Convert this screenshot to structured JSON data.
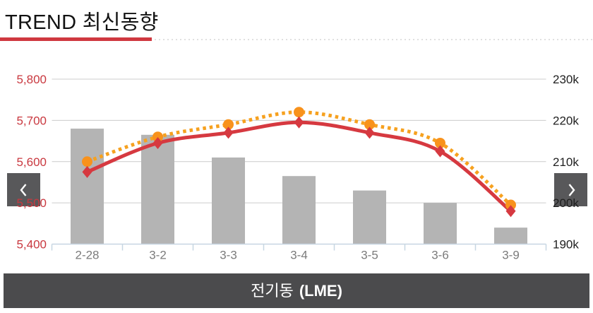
{
  "header": {
    "title": "TREND 최신동향"
  },
  "footer": {
    "label": "전기동",
    "suffix": "(LME)"
  },
  "colors": {
    "accent_red": "#d63940",
    "orange": "#f6a11f",
    "orange_marker": "#f8921c",
    "bar_gray": "#b4b4b4",
    "grid_line": "#cccccc",
    "axis_line": "#c7d6e2",
    "x_label": "#7b7b7b",
    "left_label": "#c9383f",
    "right_label": "#1f1f1f",
    "title_text": "#121212",
    "separator_red": "#cf3840",
    "separator_dots": "#e0e0e0",
    "button_bg": "#58585a",
    "button_icon": "#ffffff",
    "banner_bg": "#4b4b4d",
    "banner_text": "#ffffff",
    "background": "#ffffff"
  },
  "chart_data": {
    "type": "bar+line",
    "title": "전기동 (LME)",
    "legend": "none",
    "grid": true,
    "categories": [
      "2-28",
      "3-2",
      "3-3",
      "3-4",
      "3-5",
      "3-6",
      "3-9"
    ],
    "left_axis": {
      "tick_labels": [
        "5,800",
        "5,700",
        "5,600",
        "5,500",
        "5,400"
      ],
      "tick_values": [
        5800,
        5700,
        5600,
        5500,
        5400
      ],
      "min": 5400,
      "max": 5800
    },
    "right_axis": {
      "tick_labels": [
        "230k",
        "220k",
        "210k",
        "200k",
        "190k"
      ],
      "tick_values": [
        230,
        220,
        210,
        200,
        190
      ],
      "min": 190,
      "max": 230,
      "unit": "k"
    },
    "bar_series": {
      "name": "volume-bars",
      "axis": "right",
      "color": "#b4b4b4",
      "values_k": [
        218,
        216.5,
        211,
        206.5,
        203,
        200,
        194
      ]
    },
    "line_series": [
      {
        "name": "red-solid-line",
        "axis": "left",
        "style": "solid",
        "marker": "diamond",
        "color": "#d63940",
        "marker_color": "#d63940",
        "values": [
          5575,
          5645,
          5670,
          5695,
          5670,
          5625,
          5480
        ]
      },
      {
        "name": "orange-dotted-line",
        "axis": "left",
        "style": "dotted",
        "marker": "circle",
        "color": "#f6a11f",
        "marker_color": "#f8921c",
        "values": [
          5600,
          5660,
          5690,
          5720,
          5690,
          5645,
          5495
        ]
      }
    ]
  }
}
